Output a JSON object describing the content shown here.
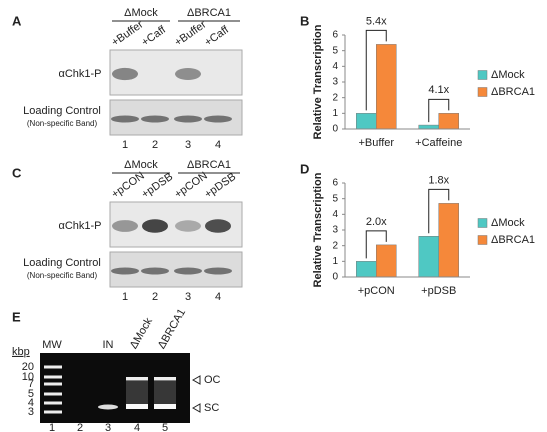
{
  "panel_a": {
    "label": "A",
    "groups": [
      "ΔMock",
      "ΔBRCA1"
    ],
    "treatments": [
      "+Buffer",
      "+Caff",
      "+Buffer",
      "+Caff"
    ],
    "blot_label": "αChk1-P",
    "control_label": "Loading Control",
    "control_sublabel": "(Non-specific Band)",
    "lane_numbers": [
      "1",
      "2",
      "3",
      "4"
    ]
  },
  "panel_c": {
    "label": "C",
    "groups": [
      "ΔMock",
      "ΔBRCA1"
    ],
    "treatments": [
      "+pCON",
      "+pDSB",
      "+pCON",
      "+pDSB"
    ],
    "blot_label": "αChk1-P",
    "control_label": "Loading Control",
    "control_sublabel": "(Non-specific Band)",
    "lane_numbers": [
      "1",
      "2",
      "3",
      "4"
    ]
  },
  "panel_e": {
    "label": "E",
    "unit": "kbp",
    "ladder_sizes": [
      "20",
      "10",
      "7",
      "5",
      "4",
      "3"
    ],
    "lane_headers": [
      "MW",
      "IN",
      "ΔMock",
      "ΔBRCA1"
    ],
    "forms": [
      "OC",
      "SC"
    ],
    "lane_numbers": [
      "1",
      "2",
      "3",
      "4",
      "5"
    ]
  },
  "chart_data": [
    {
      "type": "bar",
      "panel_label": "B",
      "y_label": "Relative Transcription",
      "categories": [
        "+Buffer",
        "+Caffeine"
      ],
      "series": [
        {
          "name": "ΔMock",
          "color": "#4fc8c3",
          "values": [
            1.0,
            0.25
          ]
        },
        {
          "name": "ΔBRCA1",
          "color": "#f5883a",
          "values": [
            5.4,
            1.0
          ]
        }
      ],
      "annotations": [
        "5.4x",
        "4.1x"
      ],
      "ylim": [
        0,
        6
      ],
      "yticks": [
        0,
        1,
        2,
        3,
        4,
        5,
        6
      ],
      "legend": "right"
    },
    {
      "type": "bar",
      "panel_label": "D",
      "y_label": "Relative Transcription",
      "categories": [
        "+pCON",
        "+pDSB"
      ],
      "series": [
        {
          "name": "ΔMock",
          "color": "#4fc8c3",
          "values": [
            1.0,
            2.6
          ]
        },
        {
          "name": "ΔBRCA1",
          "color": "#f5883a",
          "values": [
            2.05,
            4.7
          ]
        }
      ],
      "annotations": [
        "2.0x",
        "1.8x"
      ],
      "ylim": [
        0,
        6
      ],
      "yticks": [
        0,
        1,
        2,
        3,
        4,
        5,
        6
      ],
      "legend": "right"
    }
  ]
}
